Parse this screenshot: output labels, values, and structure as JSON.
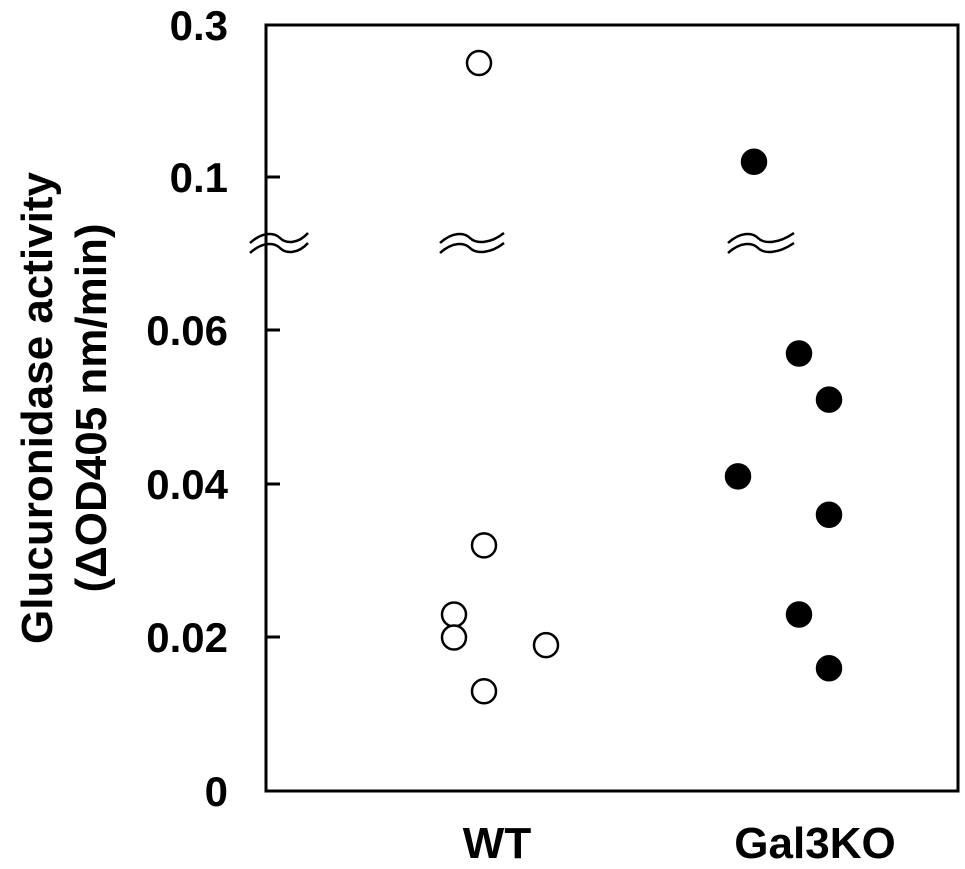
{
  "chart_data": {
    "type": "scatter",
    "title": "",
    "ylabel": "Glucuronidase activity",
    "ylabel_unit": "(ΔOD405 nm/min)",
    "categories": [
      "WT",
      "Gal3KO"
    ],
    "yticks": [
      "0",
      "0.02",
      "0.04",
      "0.06",
      "0.1",
      "0.3"
    ],
    "axis_break": "between 0.06 and 0.1",
    "series": [
      {
        "category": "WT",
        "marker": "open-circle",
        "values": [
          0.25,
          0.032,
          0.023,
          0.02,
          0.019,
          0.013
        ]
      },
      {
        "category": "Gal3KO",
        "marker": "filled-circle",
        "values": [
          0.12,
          0.057,
          0.051,
          0.041,
          0.036,
          0.023,
          0.016
        ]
      }
    ],
    "grid": false,
    "legend": "none"
  }
}
